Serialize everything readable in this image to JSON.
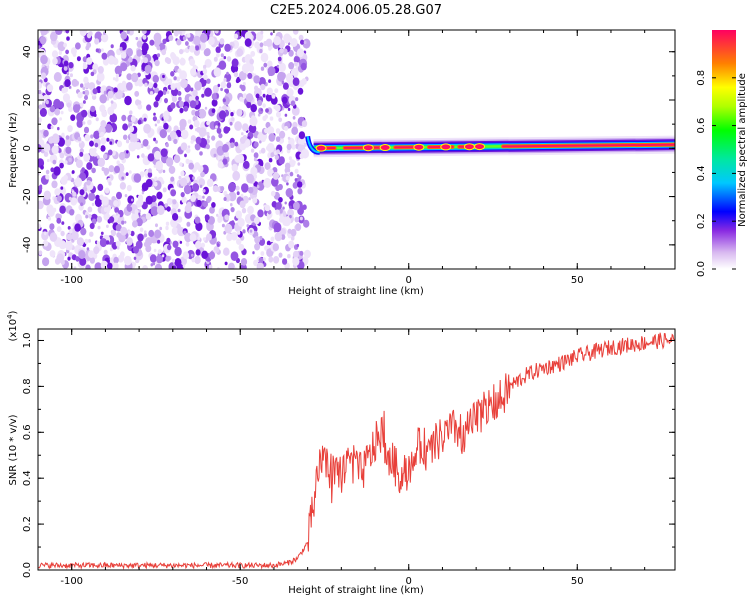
{
  "title": "C2E5.2024.006.05.28.G07",
  "colorbar": {
    "label": "Normalized spectral amplitude",
    "ticks": [
      "0.0",
      "0.2",
      "0.4",
      "0.6",
      "0.8"
    ],
    "tick_values": [
      0.0,
      0.2,
      0.4,
      0.6,
      0.8
    ],
    "range": [
      0,
      1
    ]
  },
  "chart_data": [
    {
      "type": "heatmap",
      "xlabel": "Height of straight line (km)",
      "ylabel": "Frequency (Hz)",
      "xlim": [
        -110,
        79
      ],
      "ylim": [
        -50,
        49
      ],
      "x_ticks": [
        -100,
        -50,
        0,
        50
      ],
      "x_tick_labels": [
        "-100",
        "-50",
        "0",
        "50"
      ],
      "y_ticks": [
        -40,
        -20,
        0,
        20,
        40
      ],
      "y_tick_labels": [
        "-40",
        "-20",
        "0",
        "20",
        "40"
      ],
      "regions": [
        {
          "x_range": [
            -110,
            -30
          ],
          "frequency_range": [
            -50,
            49
          ],
          "amplitude_range": [
            0.0,
            0.2
          ],
          "description": "broadband noise"
        },
        {
          "x_range": [
            -30,
            79
          ],
          "frequency_center": [
            0,
            1.5
          ],
          "amplitude_peak": 1.0,
          "description": "narrow carrier line near 0 Hz"
        }
      ]
    },
    {
      "type": "line",
      "xlabel": "Height of straight line (km)",
      "ylabel": "SNR (10 * v/v)",
      "y_scale_label": "(x10",
      "y_scale_exp": "4",
      "y_scale_close": ")",
      "xlim": [
        -110,
        79
      ],
      "ylim": [
        0,
        1.05
      ],
      "x_ticks": [
        -100,
        -50,
        0,
        50
      ],
      "x_tick_labels": [
        "-100",
        "-50",
        "0",
        "50"
      ],
      "y_ticks": [
        0.0,
        0.2,
        0.4,
        0.6,
        0.8,
        1.0
      ],
      "y_tick_labels": [
        "0.0",
        "0.2",
        "0.4",
        "0.6",
        "0.8",
        "1.0"
      ],
      "series": [
        {
          "color": "#e8403a",
          "x": [
            -110,
            -100,
            -90,
            -80,
            -70,
            -60,
            -50,
            -40,
            -36,
            -33,
            -30,
            -28,
            -26,
            -24,
            -22,
            -20,
            -18,
            -16,
            -14,
            -12,
            -10,
            -8,
            -6,
            -4,
            -2,
            0,
            2,
            4,
            6,
            8,
            10,
            12,
            14,
            16,
            18,
            20,
            22,
            25,
            28,
            30,
            35,
            40,
            45,
            50,
            55,
            60,
            65,
            70,
            75,
            79
          ],
          "y": [
            0.02,
            0.02,
            0.02,
            0.02,
            0.02,
            0.02,
            0.02,
            0.02,
            0.03,
            0.05,
            0.12,
            0.3,
            0.5,
            0.45,
            0.4,
            0.42,
            0.48,
            0.45,
            0.42,
            0.48,
            0.55,
            0.6,
            0.5,
            0.45,
            0.4,
            0.45,
            0.5,
            0.55,
            0.5,
            0.55,
            0.58,
            0.6,
            0.62,
            0.58,
            0.62,
            0.65,
            0.7,
            0.72,
            0.75,
            0.8,
            0.85,
            0.88,
            0.9,
            0.93,
            0.95,
            0.97,
            0.98,
            0.99,
            1.0,
            1.0
          ]
        }
      ]
    }
  ]
}
